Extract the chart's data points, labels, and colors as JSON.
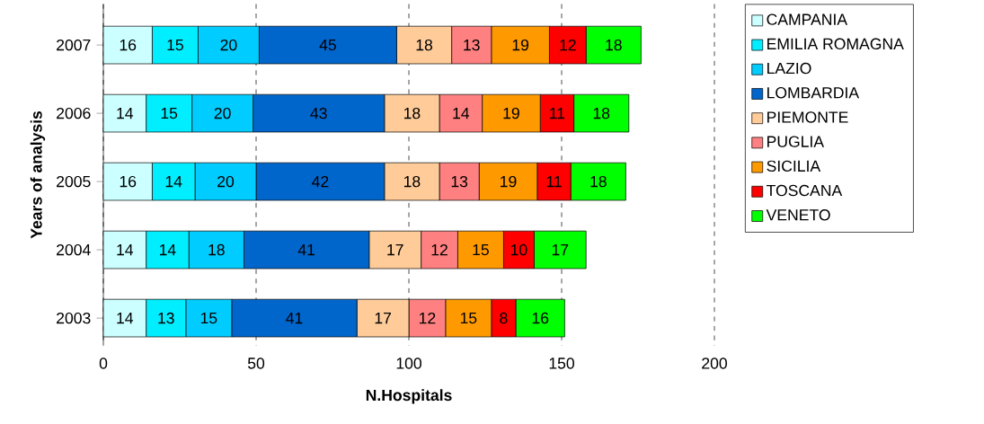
{
  "chart_data": {
    "type": "bar",
    "orientation": "horizontal",
    "stacked": true,
    "xlabel": "N.Hospitals",
    "ylabel": "Years of analysis",
    "categories": [
      "2007",
      "2006",
      "2005",
      "2004",
      "2003"
    ],
    "series": [
      {
        "name": "CAMPANIA",
        "color": "#ccffff",
        "values": [
          16,
          14,
          16,
          14,
          14
        ]
      },
      {
        "name": "EMILIA ROMAGNA",
        "color": "#00eeff",
        "values": [
          15,
          15,
          14,
          14,
          13
        ]
      },
      {
        "name": "LAZIO",
        "color": "#00ccff",
        "values": [
          20,
          20,
          20,
          18,
          15
        ]
      },
      {
        "name": "LOMBARDIA",
        "color": "#0066cc",
        "values": [
          45,
          43,
          42,
          41,
          41
        ]
      },
      {
        "name": "PIEMONTE",
        "color": "#ffcc99",
        "values": [
          18,
          18,
          18,
          17,
          17
        ]
      },
      {
        "name": "PUGLIA",
        "color": "#ff8080",
        "values": [
          13,
          14,
          13,
          12,
          12
        ]
      },
      {
        "name": "SICILIA",
        "color": "#ff9900",
        "values": [
          19,
          19,
          19,
          15,
          15
        ]
      },
      {
        "name": "TOSCANA",
        "color": "#ff0000",
        "values": [
          12,
          11,
          11,
          10,
          8
        ]
      },
      {
        "name": "VENETO",
        "color": "#00ff00",
        "values": [
          18,
          18,
          18,
          17,
          16
        ]
      }
    ],
    "xlim": [
      0,
      200
    ],
    "xticks": [
      0,
      50,
      100,
      150,
      200
    ],
    "grid": "x",
    "line_style": "dashed",
    "legend": "right",
    "data_labels": true
  }
}
